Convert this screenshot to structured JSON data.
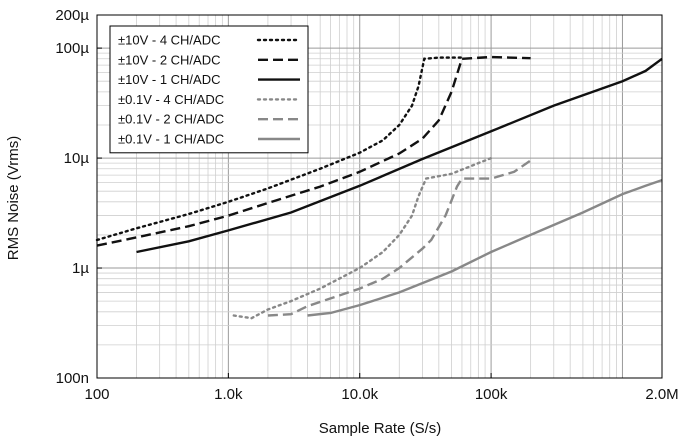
{
  "chart_data": {
    "type": "line",
    "title": "",
    "xlabel": "Sample Rate (S/s)",
    "ylabel": "RMS Noise (Vrms)",
    "x_scale": "log",
    "y_scale": "log",
    "xlim": [
      100,
      2000000
    ],
    "ylim": [
      1e-07,
      0.0002
    ],
    "grid": true,
    "legend_position": "top-left",
    "x_ticks": [
      {
        "value": 100,
        "label": "100"
      },
      {
        "value": 1000,
        "label": "1.0k"
      },
      {
        "value": 10000,
        "label": "10.0k"
      },
      {
        "value": 100000,
        "label": "100k"
      },
      {
        "value": 2000000,
        "label": "2.0M"
      }
    ],
    "y_ticks": [
      {
        "value": 1e-07,
        "label": "100n"
      },
      {
        "value": 1e-06,
        "label": "1µ"
      },
      {
        "value": 1e-05,
        "label": "10µ"
      },
      {
        "value": 0.0001,
        "label": "100µ"
      },
      {
        "value": 0.0002,
        "label": "200µ"
      }
    ],
    "series": [
      {
        "name": "±10V - 4 CH/ADC",
        "color": "#111111",
        "dash": "dotted",
        "points": [
          [
            100,
            1.8e-06
          ],
          [
            200,
            2.3e-06
          ],
          [
            500,
            3.1e-06
          ],
          [
            1000,
            4e-06
          ],
          [
            2000,
            5.3e-06
          ],
          [
            5000,
            8e-06
          ],
          [
            10000,
            1.12e-05
          ],
          [
            15000,
            1.45e-05
          ],
          [
            20000,
            2e-05
          ],
          [
            25000,
            3e-05
          ],
          [
            28000,
            4.5e-05
          ],
          [
            31000,
            8e-05
          ],
          [
            40000,
            8.2e-05
          ],
          [
            60000,
            8.2e-05
          ]
        ]
      },
      {
        "name": "±10V - 2 CH/ADC",
        "color": "#111111",
        "dash": "dashed",
        "points": [
          [
            100,
            1.6e-06
          ],
          [
            200,
            1.9e-06
          ],
          [
            500,
            2.4e-06
          ],
          [
            1000,
            3e-06
          ],
          [
            2000,
            3.9e-06
          ],
          [
            5000,
            5.5e-06
          ],
          [
            10000,
            7.5e-06
          ],
          [
            20000,
            1.1e-05
          ],
          [
            30000,
            1.5e-05
          ],
          [
            40000,
            2.2e-05
          ],
          [
            50000,
            4e-05
          ],
          [
            60000,
            8e-05
          ],
          [
            100000,
            8.3e-05
          ],
          [
            200000,
            8.1e-05
          ]
        ]
      },
      {
        "name": "±10V - 1 CH/ADC",
        "color": "#111111",
        "dash": "solid",
        "points": [
          [
            200,
            1.4e-06
          ],
          [
            500,
            1.75e-06
          ],
          [
            1000,
            2.2e-06
          ],
          [
            3000,
            3.2e-06
          ],
          [
            10000,
            5.6e-06
          ],
          [
            30000,
            9.8e-06
          ],
          [
            100000,
            1.75e-05
          ],
          [
            300000,
            3e-05
          ],
          [
            1000000,
            5e-05
          ],
          [
            1500000,
            6.2e-05
          ],
          [
            2000000,
            8e-05
          ]
        ]
      },
      {
        "name": "±0.1V - 4 CH/ADC",
        "color": "#888888",
        "dash": "dotted",
        "points": [
          [
            1100,
            3.7e-07
          ],
          [
            1500,
            3.5e-07
          ],
          [
            2000,
            4.2e-07
          ],
          [
            3000,
            5e-07
          ],
          [
            5000,
            6.5e-07
          ],
          [
            10000,
            1e-06
          ],
          [
            15000,
            1.4e-06
          ],
          [
            20000,
            2e-06
          ],
          [
            25000,
            3e-06
          ],
          [
            28000,
            4.5e-06
          ],
          [
            32000,
            6.5e-06
          ],
          [
            50000,
            7.2e-06
          ],
          [
            80000,
            9e-06
          ],
          [
            100000,
            1e-05
          ]
        ]
      },
      {
        "name": "±0.1V - 2 CH/ADC",
        "color": "#888888",
        "dash": "dashed",
        "points": [
          [
            2000,
            3.7e-07
          ],
          [
            3000,
            3.8e-07
          ],
          [
            4000,
            4.5e-07
          ],
          [
            6000,
            5.3e-07
          ],
          [
            10000,
            6.5e-07
          ],
          [
            15000,
            8e-07
          ],
          [
            20000,
            1e-06
          ],
          [
            30000,
            1.5e-06
          ],
          [
            35000,
            1.8e-06
          ],
          [
            45000,
            3e-06
          ],
          [
            55000,
            5.5e-06
          ],
          [
            60000,
            6.5e-06
          ],
          [
            90000,
            6.5e-06
          ],
          [
            100000,
            6.5e-06
          ],
          [
            150000,
            7.5e-06
          ],
          [
            200000,
            9.5e-06
          ]
        ]
      },
      {
        "name": "±0.1V - 1 CH/ADC",
        "color": "#888888",
        "dash": "solid",
        "points": [
          [
            4000,
            3.7e-07
          ],
          [
            6000,
            3.9e-07
          ],
          [
            10000,
            4.6e-07
          ],
          [
            20000,
            6e-07
          ],
          [
            50000,
            9.3e-07
          ],
          [
            100000,
            1.4e-06
          ],
          [
            200000,
            2e-06
          ],
          [
            500000,
            3.2e-06
          ],
          [
            1000000,
            4.7e-06
          ],
          [
            1500000,
            5.6e-06
          ],
          [
            2000000,
            6.3e-06
          ]
        ]
      }
    ]
  }
}
